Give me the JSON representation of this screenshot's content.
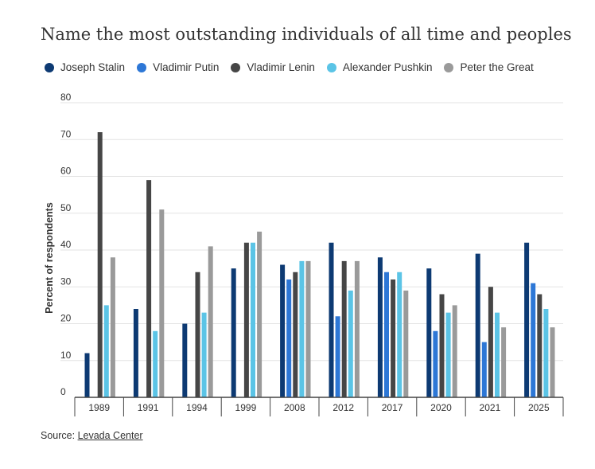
{
  "chart_data": {
    "type": "bar",
    "title": "Name the most outstanding individuals of all time and peoples",
    "ylabel": "Percent of respondents",
    "xlabel": "",
    "ylim": [
      0,
      80
    ],
    "yticks": [
      0,
      10,
      20,
      30,
      40,
      50,
      60,
      70,
      80
    ],
    "grid": true,
    "legend": "top-left",
    "categories": [
      "1989",
      "1991",
      "1994",
      "1999",
      "2008",
      "2012",
      "2017",
      "2020",
      "2021",
      "2025"
    ],
    "series": [
      {
        "name": "Joseph Stalin",
        "color": "#0d3a73",
        "values": [
          12,
          24,
          20,
          35,
          36,
          42,
          38,
          35,
          39,
          42
        ]
      },
      {
        "name": "Vladimir Putin",
        "color": "#2d77d6",
        "values": [
          null,
          null,
          null,
          null,
          32,
          22,
          34,
          18,
          15,
          31
        ]
      },
      {
        "name": "Vladimir Lenin",
        "color": "#464646",
        "values": [
          72,
          59,
          34,
          42,
          34,
          37,
          32,
          28,
          30,
          28
        ]
      },
      {
        "name": "Alexander Pushkin",
        "color": "#5bc4e6",
        "values": [
          25,
          18,
          23,
          42,
          37,
          29,
          34,
          23,
          23,
          24
        ]
      },
      {
        "name": "Peter the Great",
        "color": "#9a9a9a",
        "values": [
          38,
          51,
          41,
          45,
          37,
          37,
          29,
          25,
          19,
          19
        ]
      }
    ]
  },
  "source": {
    "prefix": "Source: ",
    "link_text": "Levada Center"
  }
}
